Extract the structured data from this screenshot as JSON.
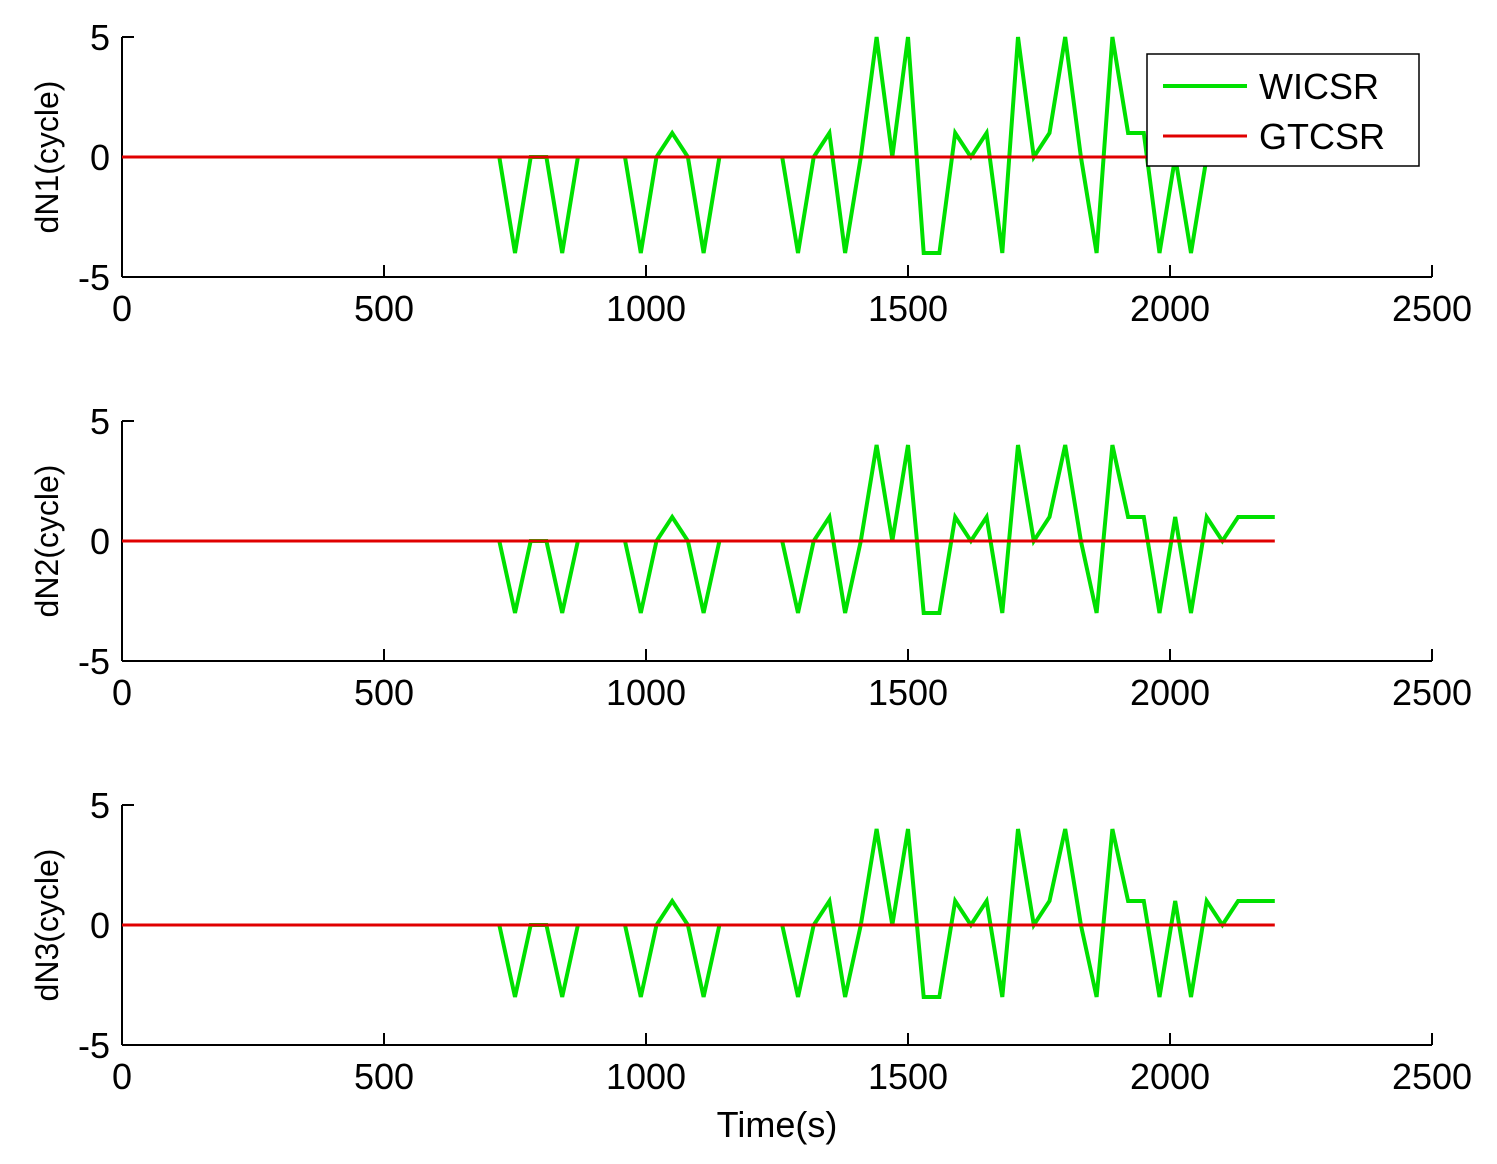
{
  "chart_data": [
    {
      "type": "line",
      "ylabel": "dN1(cycle)",
      "xlabel": "",
      "xlim": [
        0,
        2500
      ],
      "ylim": [
        -5,
        5
      ],
      "xticks": [
        "0",
        "500",
        "1000",
        "1500",
        "2000",
        "2500"
      ],
      "yticks": [
        "5",
        "0",
        "-5"
      ],
      "grid": false,
      "legend": {
        "placement": "top-right",
        "entries": [
          "WICSR",
          "GTCSR"
        ]
      },
      "series": [
        {
          "name": "WICSR",
          "color": "#00e000",
          "x": [
            720,
            750,
            780,
            810,
            840,
            870,
            null,
            960,
            990,
            1020,
            1050,
            1080,
            1110,
            1140,
            null,
            1260,
            1290,
            1320,
            1350,
            1380,
            1410,
            1440,
            1470,
            1500,
            1530,
            1560,
            1590,
            1620,
            1650,
            1680,
            1710,
            1740,
            1770,
            1800,
            1830,
            1860,
            1890,
            1920,
            1950,
            1980,
            2010,
            2040,
            2070
          ],
          "y": [
            0,
            -4,
            0,
            0,
            -4,
            0,
            null,
            0,
            -4,
            0,
            1,
            0,
            -4,
            0,
            null,
            0,
            -4,
            0,
            1,
            -4,
            0,
            5,
            0,
            5,
            -4,
            -4,
            1,
            0,
            1,
            -4,
            5,
            0,
            1,
            5,
            0,
            -4,
            5,
            1,
            1,
            -4,
            0,
            -4,
            0
          ]
        },
        {
          "name": "GTCSR",
          "color": "#e00000",
          "x": [
            0,
            2200
          ],
          "y": [
            0,
            0
          ]
        }
      ]
    },
    {
      "type": "line",
      "ylabel": "dN2(cycle)",
      "xlabel": "",
      "xlim": [
        0,
        2500
      ],
      "ylim": [
        -5,
        5
      ],
      "xticks": [
        "0",
        "500",
        "1000",
        "1500",
        "2000",
        "2500"
      ],
      "yticks": [
        "5",
        "0",
        "-5"
      ],
      "grid": false,
      "series": [
        {
          "name": "WICSR",
          "color": "#00e000",
          "x": [
            720,
            750,
            780,
            810,
            840,
            870,
            null,
            960,
            990,
            1020,
            1050,
            1080,
            1110,
            1140,
            null,
            1260,
            1290,
            1320,
            1350,
            1380,
            1410,
            1440,
            1470,
            1500,
            1530,
            1560,
            1590,
            1620,
            1650,
            1680,
            1710,
            1740,
            1770,
            1800,
            1830,
            1860,
            1890,
            1920,
            1950,
            1980,
            2010,
            2040,
            2070,
            2100,
            2130,
            2160,
            2200
          ],
          "y": [
            0,
            -3,
            0,
            0,
            -3,
            0,
            null,
            0,
            -3,
            0,
            1,
            0,
            -3,
            0,
            null,
            0,
            -3,
            0,
            1,
            -3,
            0,
            4,
            0,
            4,
            -3,
            -3,
            1,
            0,
            1,
            -3,
            4,
            0,
            1,
            4,
            0,
            -3,
            4,
            1,
            1,
            -3,
            1,
            -3,
            1,
            0,
            1,
            1,
            1
          ]
        },
        {
          "name": "GTCSR",
          "color": "#e00000",
          "x": [
            0,
            2200
          ],
          "y": [
            0,
            0
          ]
        }
      ]
    },
    {
      "type": "line",
      "ylabel": "dN3(cycle)",
      "xlabel": "Time(s)",
      "xlim": [
        0,
        2500
      ],
      "ylim": [
        -5,
        5
      ],
      "xticks": [
        "0",
        "500",
        "1000",
        "1500",
        "2000",
        "2500"
      ],
      "yticks": [
        "5",
        "0",
        "-5"
      ],
      "grid": false,
      "series": [
        {
          "name": "WICSR",
          "color": "#00e000",
          "x": [
            720,
            750,
            780,
            810,
            840,
            870,
            null,
            960,
            990,
            1020,
            1050,
            1080,
            1110,
            1140,
            null,
            1260,
            1290,
            1320,
            1350,
            1380,
            1410,
            1440,
            1470,
            1500,
            1530,
            1560,
            1590,
            1620,
            1650,
            1680,
            1710,
            1740,
            1770,
            1800,
            1830,
            1860,
            1890,
            1920,
            1950,
            1980,
            2010,
            2040,
            2070,
            2100,
            2130,
            2160,
            2200
          ],
          "y": [
            0,
            -3,
            0,
            0,
            -3,
            0,
            null,
            0,
            -3,
            0,
            1,
            0,
            -3,
            0,
            null,
            0,
            -3,
            0,
            1,
            -3,
            0,
            4,
            0,
            4,
            -3,
            -3,
            1,
            0,
            1,
            -3,
            4,
            0,
            1,
            4,
            0,
            -3,
            4,
            1,
            1,
            -3,
            1,
            -3,
            1,
            0,
            1,
            1,
            1
          ]
        },
        {
          "name": "GTCSR",
          "color": "#e00000",
          "x": [
            0,
            2200
          ],
          "y": [
            0,
            0
          ]
        }
      ]
    }
  ]
}
